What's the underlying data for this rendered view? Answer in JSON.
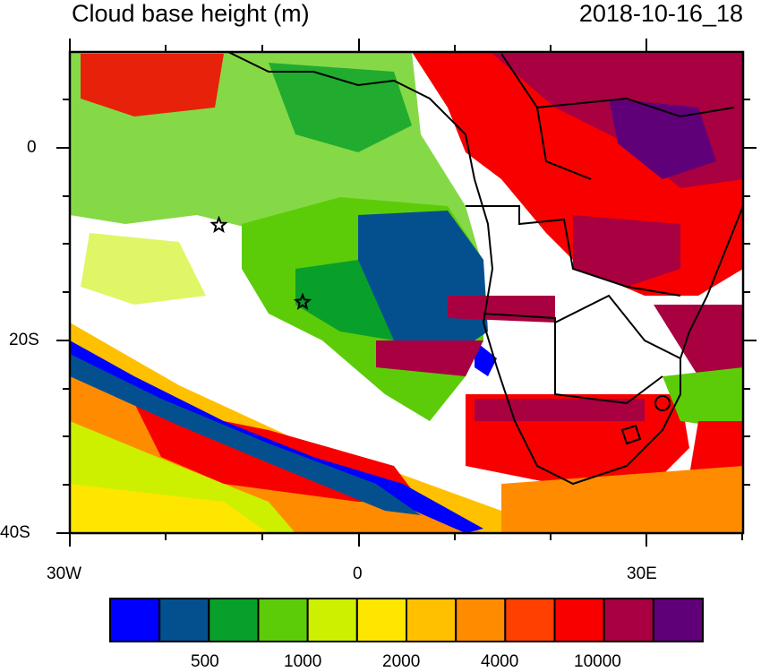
{
  "title_left": "Cloud base height (m)",
  "title_right": "2018-10-16_18",
  "axes": {
    "lon_range": [
      -30,
      40
    ],
    "lat_range": [
      -40,
      10
    ],
    "x_ticks": [
      "30W",
      "0",
      "30E"
    ],
    "y_ticks": [
      "0",
      "20S",
      "40S"
    ]
  },
  "colorbar": {
    "colors": [
      "#0000ff",
      "#04508f",
      "#08a02a",
      "#5ccc08",
      "#ccf000",
      "#ffe600",
      "#ffc000",
      "#ff8c00",
      "#ff4000",
      "#f80000",
      "#a80040",
      "#600078"
    ],
    "labels": [
      "500",
      "1000",
      "2000",
      "4000",
      "10000"
    ]
  },
  "markers": [
    {
      "name": "star",
      "lon": -14.5,
      "lat": -8
    },
    {
      "name": "star",
      "lon": -5.8,
      "lat": -16
    }
  ]
}
